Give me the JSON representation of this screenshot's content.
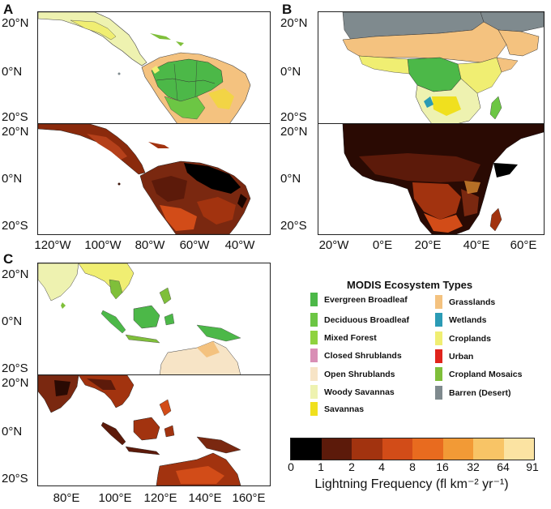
{
  "panels": {
    "a": {
      "letter": "A",
      "y_ticks": [
        "20°N",
        "0°N",
        "20°S"
      ],
      "y_ticks_lower": [
        "20°N",
        "0°N",
        "20°S"
      ],
      "x_ticks": [
        "120°W",
        "100°W",
        "80°W",
        "60°W",
        "40°W"
      ]
    },
    "b": {
      "letter": "B",
      "y_ticks": [
        "20°N",
        "0°N",
        "20°S"
      ],
      "y_ticks_lower": [
        "20°N",
        "0°N",
        "20°S"
      ],
      "x_ticks": [
        "20°W",
        "0°E",
        "20°E",
        "40°E",
        "60°E"
      ]
    },
    "c": {
      "letter": "C",
      "y_ticks": [
        "20°N",
        "0°N",
        "20°S"
      ],
      "y_ticks_lower": [
        "20°N",
        "0°N",
        "20°S"
      ],
      "x_ticks": [
        "80°E",
        "100°E",
        "120°E",
        "140°E",
        "160°E"
      ]
    }
  },
  "legend": {
    "title": "MODIS Ecosystem Types",
    "left_items": [
      {
        "label": "Evergreen Broadleaf",
        "color": "#4cb848"
      },
      {
        "label": "Deciduous Broadleaf",
        "color": "#6cc644"
      },
      {
        "label": "Mixed Forest",
        "color": "#8fd23f"
      },
      {
        "label": "Closed Shrublands",
        "color": "#d98fb5"
      },
      {
        "label": "Open Shrublands",
        "color": "#f7e4c6"
      },
      {
        "label": "Woody Savannas",
        "color": "#eef2b0"
      },
      {
        "label": "Savannas",
        "color": "#f0e01e"
      }
    ],
    "right_items": [
      {
        "label": "Grasslands",
        "color": "#f4c27f"
      },
      {
        "label": "Wetlands",
        "color": "#2b9bb5"
      },
      {
        "label": "Croplands",
        "color": "#f0ee72"
      },
      {
        "label": "Urban",
        "color": "#e0241c"
      },
      {
        "label": "Cropland Mosaics",
        "color": "#7fbf3a"
      },
      {
        "label": "Barren (Desert)",
        "color": "#7f8a8e"
      }
    ]
  },
  "colorbar": {
    "label": "Lightning Frequency (fl km⁻² yr⁻¹)",
    "ticks": [
      "0",
      "1",
      "2",
      "4",
      "8",
      "16",
      "32",
      "64",
      "91"
    ],
    "colors": [
      "#000000",
      "#5c1a0a",
      "#a2330f",
      "#d24c18",
      "#e86b1f",
      "#f29a36",
      "#f8c466",
      "#fbe3a2"
    ]
  }
}
